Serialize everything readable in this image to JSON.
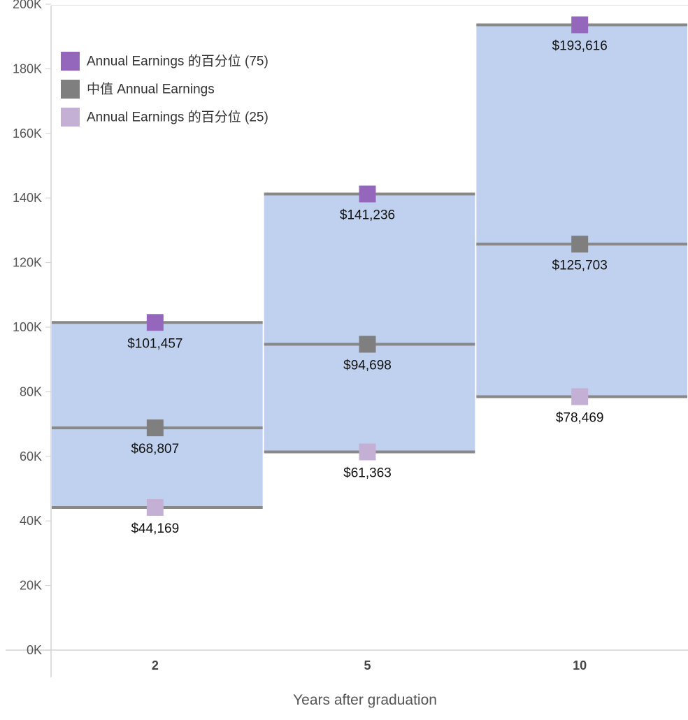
{
  "chart_data": {
    "type": "bar",
    "subtype": "range-band-with-percentile-markers",
    "title": "",
    "xlabel": "Years after graduation",
    "ylabel": "",
    "ylim": [
      0,
      200000
    ],
    "yticks": [
      0,
      20000,
      40000,
      60000,
      80000,
      100000,
      120000,
      140000,
      160000,
      180000,
      200000
    ],
    "ytick_labels": [
      "0K",
      "20K",
      "40K",
      "60K",
      "80K",
      "100K",
      "120K",
      "140K",
      "160K",
      "180K",
      "200K"
    ],
    "categories": [
      "2",
      "5",
      "10"
    ],
    "series": [
      {
        "name": "Annual Earnings 的百分位 (75)",
        "values": [
          101457,
          141236,
          193616
        ],
        "labels": [
          "$101,457",
          "$141,236",
          "$193,616"
        ],
        "color": "#9467bd"
      },
      {
        "name": "中值 Annual Earnings",
        "values": [
          68807,
          94698,
          125703
        ],
        "labels": [
          "$68,807",
          "$94,698",
          "$125,703"
        ],
        "color": "#7f7f7f"
      },
      {
        "name": "Annual Earnings 的百分位 (25)",
        "values": [
          44169,
          61363,
          78469
        ],
        "labels": [
          "$44,169",
          "$61,363",
          "$78,469"
        ],
        "color": "#c5b0d5"
      }
    ],
    "band_color": "#bfd1ee",
    "line_color": "#888888",
    "grid": false,
    "legend_position": "top-left"
  }
}
